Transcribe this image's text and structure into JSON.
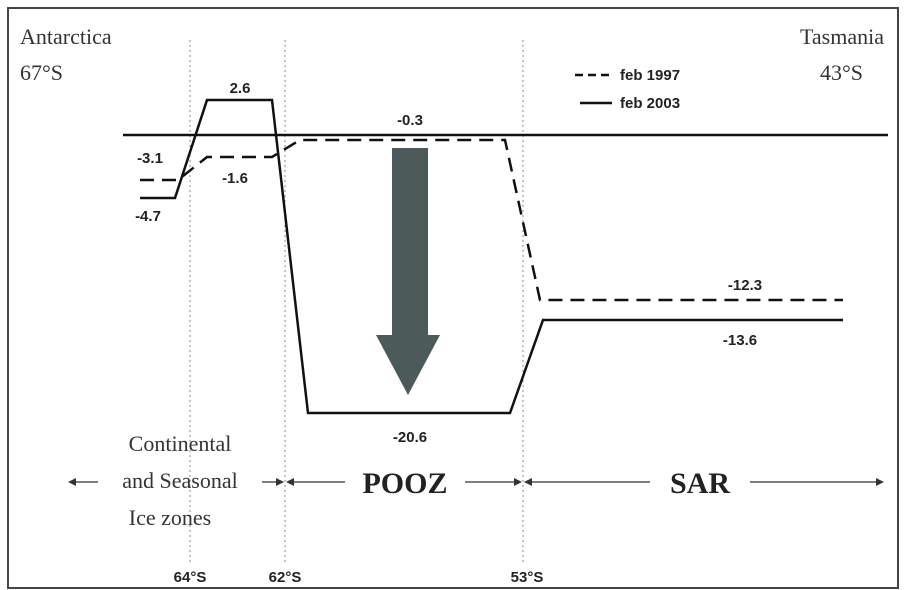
{
  "places": [
    {
      "name": "Antarctica",
      "lat": "67°S"
    },
    {
      "name": "Tasmania",
      "lat": "43°S"
    }
  ],
  "legend": [
    "feb 1997",
    "feb 2003"
  ],
  "values": [
    "2.6",
    "-0.3",
    "-3.1",
    "-1.6",
    "-4.7",
    "-12.3",
    "-13.6",
    "-20.6"
  ],
  "zones": {
    "ice": [
      "Continental",
      "and Seasonal",
      "Ice zones"
    ],
    "pooz": "POOZ",
    "sar": "SAR"
  },
  "latitudes": [
    "64°S",
    "62°S",
    "53°S"
  ]
}
